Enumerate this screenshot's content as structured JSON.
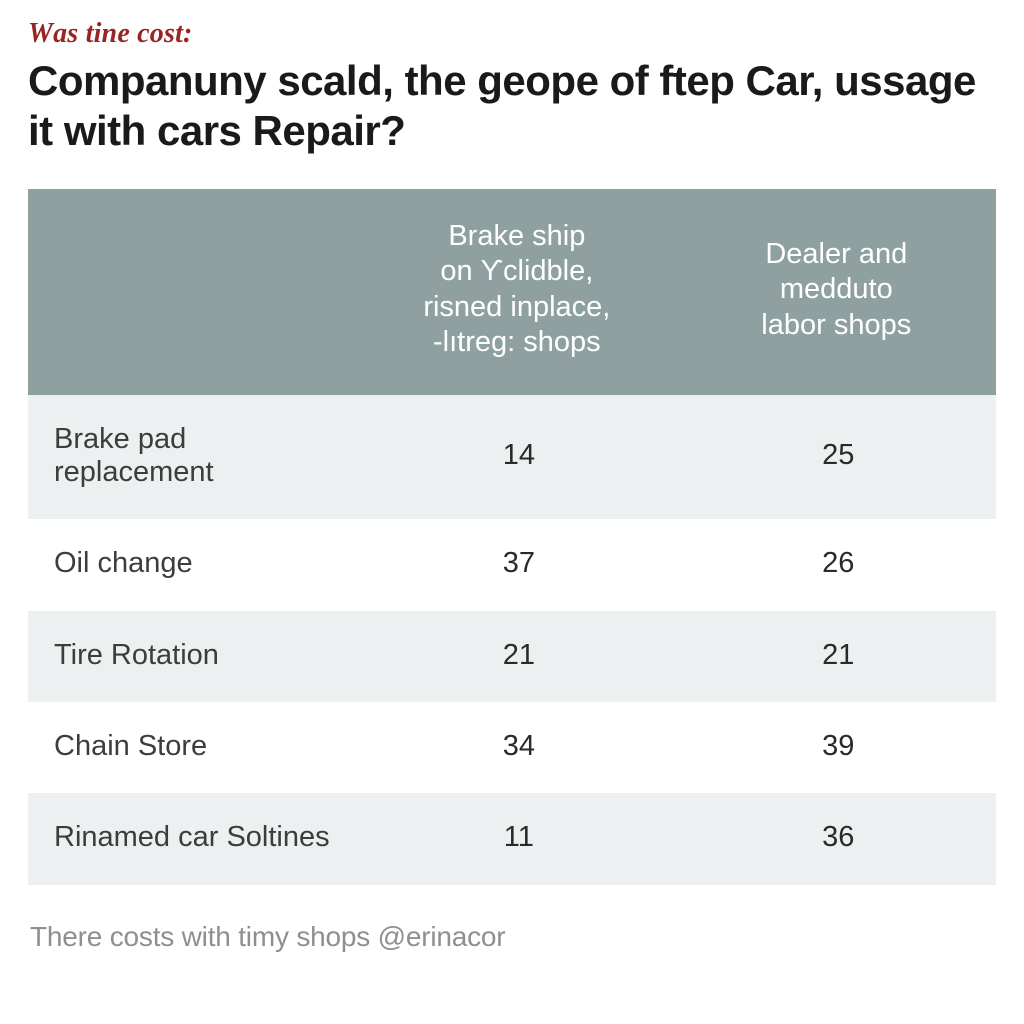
{
  "eyebrow": {
    "text": "Wɑs tine cost:",
    "color": "#9a2323",
    "fontsize_pt": 21
  },
  "title": {
    "text": "Companuny scald, the geope of ftep Car, ussage it with cars Repair?",
    "color": "#1a1a1a",
    "fontsize_pt": 32
  },
  "comparison_table": {
    "type": "table",
    "background_color": "#ffffff",
    "header": {
      "bg_color": "#8fa0a0",
      "text_color": "#ffffff",
      "fontsize_pt": 22,
      "cells": [
        "",
        "Brake ship\non Ƴclidble,\nrisned inplace,\n-lıtreg: shops",
        "Dealer and\nmedduto\nlabor shops"
      ]
    },
    "row_label_color": "#3d3d3d",
    "value_color": "#2a2a2a",
    "row_fontsize_pt": 22,
    "row_bg_even": "#edf0f0",
    "row_bg_odd": "#ffffff",
    "columns": [
      "service",
      "independent_shops",
      "dealer_shops"
    ],
    "rows": [
      {
        "label": "Brake pad replacement",
        "col1": "14",
        "col2": "25"
      },
      {
        "label": "Oil change",
        "col1": "37",
        "col2": "26"
      },
      {
        "label": "Tire Rotation",
        "col1": "21",
        "col2": "21"
      },
      {
        "label": "Chain Store",
        "col1": "34",
        "col2": "39"
      },
      {
        "label": "Rinamed car Soltines",
        "col1": "11",
        "col2": "36"
      }
    ]
  },
  "footer": {
    "text": "There costs with timy shops @erinacor",
    "color": "#8f8f8f",
    "fontsize_pt": 21
  }
}
